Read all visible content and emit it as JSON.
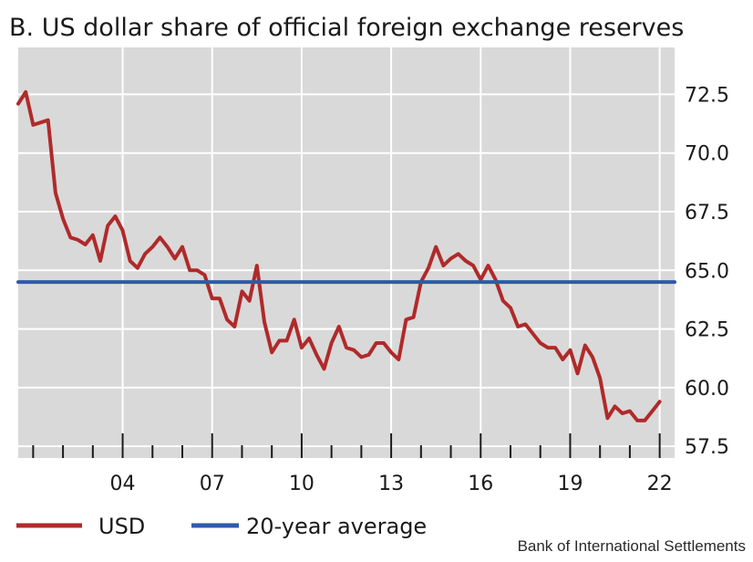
{
  "chart_data": {
    "type": "line",
    "title": "B. US dollar share of official foreign exchange reserves",
    "source": "Bank of International Settlements",
    "x_tick_labels": [
      "04",
      "07",
      "10",
      "13",
      "16",
      "19",
      "22"
    ],
    "x_tick_positions": [
      2004,
      2007,
      2010,
      2013,
      2016,
      2019,
      2022
    ],
    "y_tick_labels": [
      "72.5",
      "70.0",
      "67.5",
      "65.0",
      "62.5",
      "60.0",
      "57.5"
    ],
    "y_tick_values": [
      72.5,
      70.0,
      67.5,
      65.0,
      62.5,
      60.0,
      57.5
    ],
    "xlim": [
      2000.5,
      2022.5
    ],
    "ylim": [
      57.0,
      74.5
    ],
    "grid": true,
    "legend_placement": "bottom-left",
    "colors": {
      "usd": "#b02a2a",
      "average": "#2e5aa8",
      "plot_bg": "#d9d9d9",
      "grid": "#ffffff"
    },
    "series": [
      {
        "name": "USD",
        "x": [
          2000.5,
          2000.75,
          2001.0,
          2001.5,
          2001.75,
          2002.0,
          2002.25,
          2002.5,
          2002.75,
          2003.0,
          2003.25,
          2003.5,
          2003.75,
          2004.0,
          2004.25,
          2004.5,
          2004.75,
          2005.0,
          2005.25,
          2005.5,
          2005.75,
          2006.0,
          2006.25,
          2006.5,
          2006.75,
          2007.0,
          2007.25,
          2007.5,
          2007.75,
          2008.0,
          2008.25,
          2008.5,
          2008.75,
          2009.0,
          2009.25,
          2009.5,
          2009.75,
          2010.0,
          2010.25,
          2010.5,
          2010.75,
          2011.0,
          2011.25,
          2011.5,
          2011.75,
          2012.0,
          2012.25,
          2012.5,
          2012.75,
          2013.0,
          2013.25,
          2013.5,
          2013.75,
          2014.0,
          2014.25,
          2014.5,
          2014.75,
          2015.0,
          2015.25,
          2015.5,
          2015.75,
          2016.0,
          2016.25,
          2016.5,
          2016.75,
          2017.0,
          2017.25,
          2017.5,
          2017.75,
          2018.0,
          2018.25,
          2018.5,
          2018.75,
          2019.0,
          2019.25,
          2019.5,
          2019.75,
          2020.0,
          2020.25,
          2020.5,
          2020.75,
          2021.0,
          2021.25,
          2021.5,
          2021.75,
          2022.0
        ],
        "values": [
          72.1,
          72.6,
          71.2,
          71.4,
          68.3,
          67.2,
          66.4,
          66.3,
          66.1,
          66.5,
          65.4,
          66.9,
          67.3,
          66.7,
          65.4,
          65.1,
          65.7,
          66.0,
          66.4,
          66.0,
          65.5,
          66.0,
          65.0,
          65.0,
          64.8,
          63.8,
          63.8,
          62.9,
          62.6,
          64.1,
          63.7,
          65.2,
          62.8,
          61.5,
          62.0,
          62.0,
          62.9,
          61.7,
          62.1,
          61.4,
          60.8,
          61.9,
          62.6,
          61.7,
          61.6,
          61.3,
          61.4,
          61.9,
          61.9,
          61.5,
          61.2,
          62.9,
          63.0,
          64.5,
          65.1,
          66.0,
          65.2,
          65.5,
          65.7,
          65.4,
          65.2,
          64.6,
          65.2,
          64.6,
          63.7,
          63.4,
          62.6,
          62.7,
          62.3,
          61.9,
          61.7,
          61.7,
          61.2,
          61.6,
          60.6,
          61.8,
          61.3,
          60.4,
          58.7,
          59.2,
          58.9,
          59.0,
          58.6,
          58.6,
          59.0,
          59.4
        ]
      },
      {
        "name": "20-year average",
        "x": [
          2000.5,
          2022.5
        ],
        "values": [
          64.5,
          64.5
        ]
      }
    ]
  }
}
